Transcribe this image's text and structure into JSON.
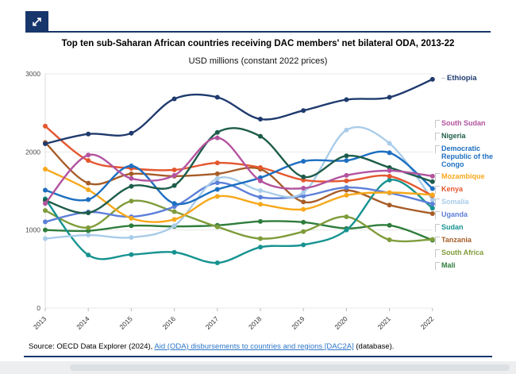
{
  "toolbar": {
    "expand_icon": "expand-diagonal"
  },
  "header": {
    "title": "Top ten sub-Saharan African countries receiving DAC members' net bilateral ODA, 2013-22",
    "subtitle": "USD millions (constant 2022 prices)"
  },
  "source": {
    "prefix": "Source: OECD Data Explorer (2024), ",
    "link_text": "Aid (ODA) disbursements to countries and regions [DAC2A]",
    "suffix": " (database)."
  },
  "colors": {
    "brand_navy": "#17366b",
    "link_blue": "#2d76c8",
    "gridline": "#e8e8e8",
    "axis_text": "#4a4a4a"
  },
  "chart_data": {
    "type": "line",
    "title": "Top ten sub-Saharan African countries receiving DAC members' net bilateral ODA, 2013-22",
    "subtitle": "USD millions (constant 2022 prices)",
    "x": [
      "2013",
      "2014",
      "2015",
      "2016",
      "2017",
      "2018",
      "2019",
      "2020",
      "2021",
      "2022"
    ],
    "ylim": [
      0,
      3000
    ],
    "yticks": [
      0,
      1000,
      2000,
      3000
    ],
    "grid": true,
    "legend_position": "right",
    "series": [
      {
        "name": "Ethiopia",
        "color": "#1f3a6e",
        "values": [
          2105,
          2230,
          2240,
          2680,
          2700,
          2420,
          2530,
          2670,
          2700,
          2930
        ]
      },
      {
        "name": "South Sudan",
        "color": "#b3539f",
        "values": [
          1340,
          1960,
          1660,
          1700,
          2180,
          1630,
          1535,
          1700,
          1760,
          1690
        ]
      },
      {
        "name": "Nigeria",
        "color": "#1d5c4a",
        "values": [
          1380,
          1220,
          1560,
          1570,
          2250,
          2200,
          1680,
          1950,
          1800,
          1620
        ]
      },
      {
        "name": "Democratic Republic of the Congo",
        "color": "#1d6fc1",
        "values": [
          1510,
          1390,
          1820,
          1340,
          1520,
          1670,
          1880,
          1890,
          1990,
          1530
        ]
      },
      {
        "name": "Mozambique",
        "color": "#f7a81b",
        "values": [
          1780,
          1515,
          1150,
          1135,
          1430,
          1330,
          1265,
          1445,
          1480,
          1450
        ]
      },
      {
        "name": "Kenya",
        "color": "#e4572e",
        "values": [
          2330,
          1890,
          1790,
          1770,
          1860,
          1800,
          1640,
          1630,
          1690,
          1440
        ]
      },
      {
        "name": "Somalia",
        "color": "#a9cce9",
        "values": [
          890,
          935,
          905,
          1055,
          1660,
          1505,
          1480,
          2280,
          2110,
          1390
        ]
      },
      {
        "name": "Uganda",
        "color": "#5d7fd8",
        "values": [
          1105,
          1230,
          1170,
          1300,
          1605,
          1420,
          1435,
          1545,
          1475,
          1335
        ]
      },
      {
        "name": "Sudan",
        "color": "#169390",
        "values": [
          1400,
          680,
          685,
          715,
          580,
          780,
          810,
          1000,
          1640,
          1280
        ]
      },
      {
        "name": "Tanzania",
        "color": "#a75d28",
        "values": [
          2120,
          1600,
          1720,
          1690,
          1720,
          1780,
          1360,
          1510,
          1320,
          1210
        ]
      },
      {
        "name": "South Africa",
        "color": "#7f9c3a",
        "values": [
          1250,
          1030,
          1370,
          1235,
          1040,
          890,
          980,
          1170,
          875,
          880
        ]
      },
      {
        "name": "Mali",
        "color": "#2f7d3c",
        "values": [
          1000,
          990,
          1055,
          1045,
          1060,
          1110,
          1100,
          1020,
          1060,
          870
        ]
      }
    ]
  }
}
